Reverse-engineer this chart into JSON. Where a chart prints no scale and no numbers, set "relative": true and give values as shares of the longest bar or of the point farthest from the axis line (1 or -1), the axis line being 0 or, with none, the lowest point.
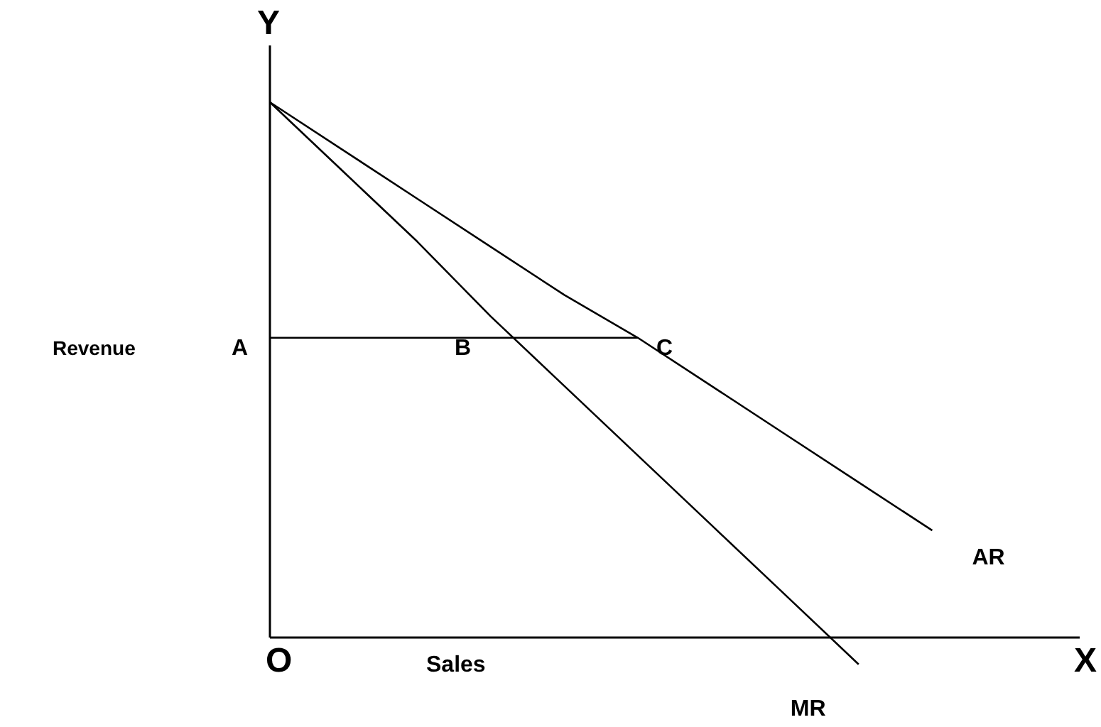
{
  "chart_data": {
    "type": "line",
    "relative": true,
    "xlabel": "Sales",
    "line_style": "solid",
    "categories": [
      null,
      null,
      null,
      null,
      null,
      null,
      null,
      null,
      null,
      null,
      null,
      null
    ],
    "series": [
      {
        "name": "AR",
        "color": "#000000",
        "values": [
          1,
          0.91,
          0.82,
          0.73,
          0.64,
          0.56,
          0.47,
          0.38,
          0.29,
          0.2,
          null,
          null
        ]
      },
      {
        "name": "MR",
        "color": "#000000",
        "values": [
          1,
          0.87,
          0.74,
          0.6,
          0.47,
          0.34,
          0.21,
          0.08,
          -0.05,
          null,
          null,
          null
        ]
      },
      {
        "color": "#000000",
        "values": [
          0.56,
          0.56,
          0.56,
          0.56,
          0.56,
          0.56,
          null,
          null,
          null,
          null,
          null,
          null
        ]
      }
    ],
    "annotations": [
      "Y",
      "X",
      "O",
      "A",
      "B",
      "C",
      "Revenue"
    ]
  }
}
